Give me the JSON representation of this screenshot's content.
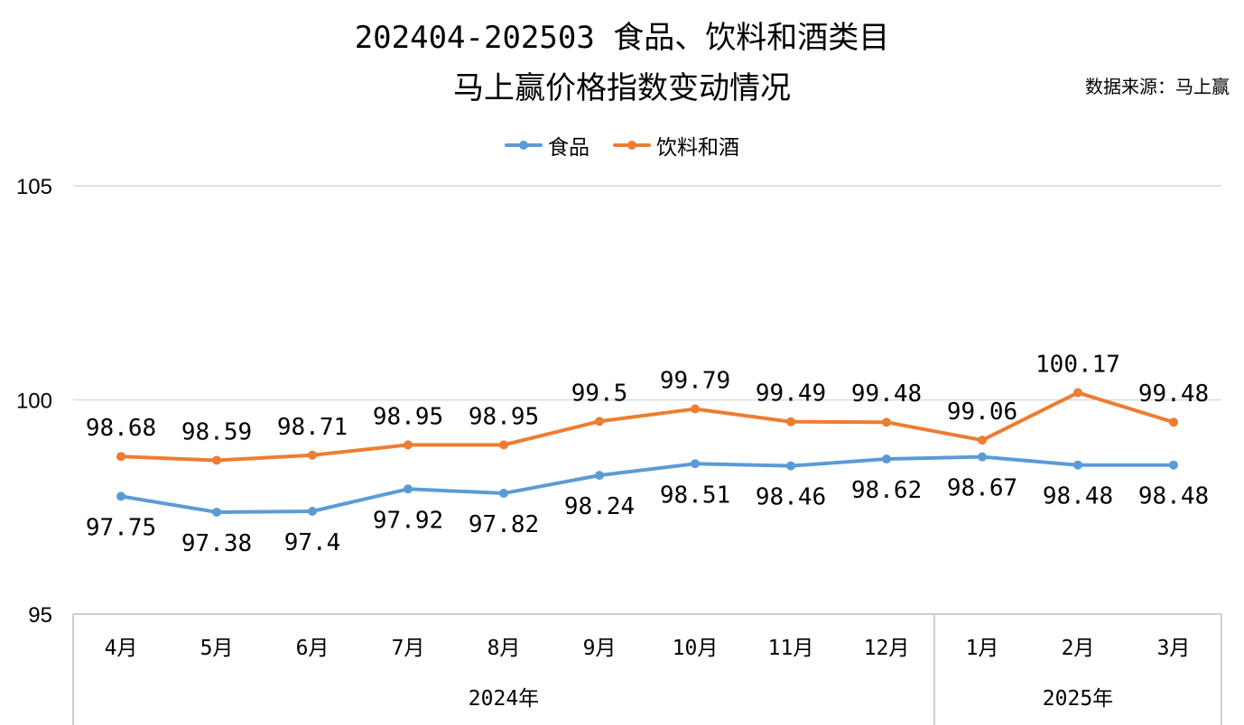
{
  "title_line1": "202404-202503 食品、饮料和酒类目",
  "title_line2": "马上赢价格指数变动情况",
  "source": "数据来源：马上赢",
  "chart_data": {
    "type": "line",
    "title": "202404-202503 食品、饮料和酒类目马上赢价格指数变动情况",
    "categories": [
      "4月",
      "5月",
      "6月",
      "7月",
      "8月",
      "9月",
      "10月",
      "11月",
      "12月",
      "1月",
      "2月",
      "3月"
    ],
    "groups": [
      {
        "label": "2024年",
        "count": 9
      },
      {
        "label": "2025年",
        "count": 3
      }
    ],
    "series": [
      {
        "name": "食品",
        "color": "#5b9bd5",
        "values": [
          97.75,
          97.38,
          97.4,
          97.92,
          97.82,
          98.24,
          98.51,
          98.46,
          98.62,
          98.67,
          98.48,
          98.48
        ],
        "labels": [
          "97.75",
          "97.38",
          "97.4",
          "97.92",
          "97.82",
          "98.24",
          "98.51",
          "98.46",
          "98.62",
          "98.67",
          "98.48",
          "98.48"
        ]
      },
      {
        "name": "饮料和酒",
        "color": "#ed7d31",
        "values": [
          98.68,
          98.59,
          98.71,
          98.95,
          98.95,
          99.5,
          99.79,
          99.49,
          99.48,
          99.06,
          100.17,
          99.48
        ],
        "labels": [
          "98.68",
          "98.59",
          "98.71",
          "98.95",
          "98.95",
          "99.5",
          "99.79",
          "99.49",
          "99.48",
          "99.06",
          "100.17",
          "99.48"
        ]
      }
    ],
    "ylim": [
      95,
      105
    ],
    "yticks": [
      95,
      100,
      105
    ],
    "grid": true,
    "legend": "top-center"
  }
}
